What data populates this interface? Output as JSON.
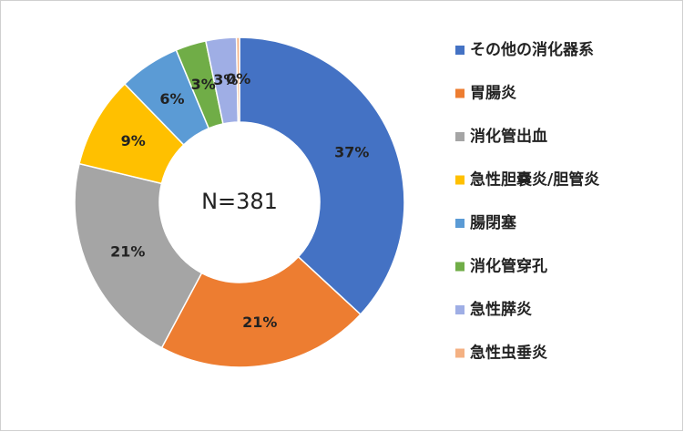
{
  "chart_data": {
    "type": "pie",
    "center_text": "N=381",
    "categories": [
      "その他の消化器系",
      "胃腸炎",
      "消化管出血",
      "急性胆嚢炎/胆管炎",
      "腸閉塞",
      "消化管穿孔",
      "急性膵炎",
      "急性虫垂炎"
    ],
    "values": [
      37,
      21,
      21,
      9,
      6,
      3,
      3,
      0.3
    ],
    "value_labels": [
      "37%",
      "21%",
      "21%",
      "9%",
      "6%",
      "3%",
      "3%",
      "0%"
    ],
    "colors": [
      "#4472c4",
      "#ed7d31",
      "#a5a5a5",
      "#ffc000",
      "#5b9bd5",
      "#70ad47",
      "#9faee5",
      "#f4b183"
    ],
    "legend": "right"
  }
}
